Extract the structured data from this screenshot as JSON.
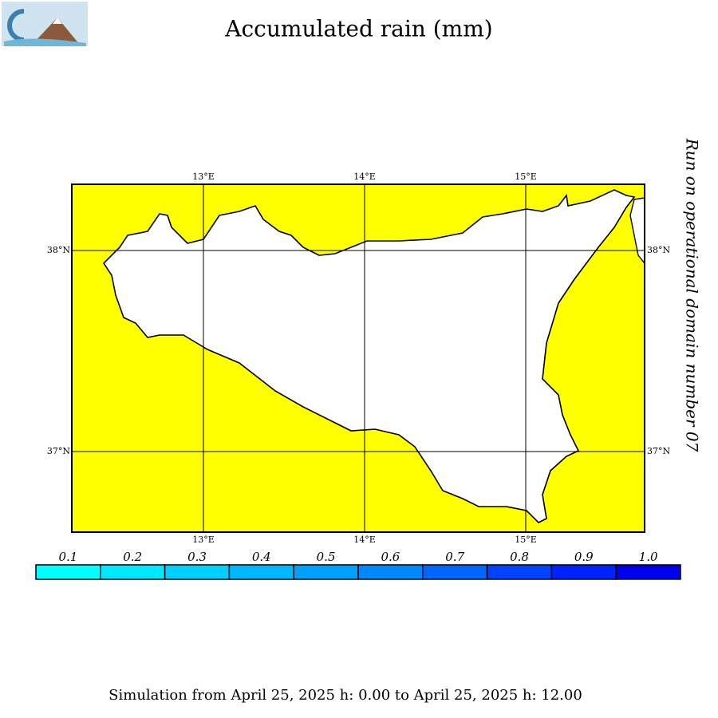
{
  "header": {
    "title": "Accumulated rain (mm)",
    "side_note": "Run on operational domain number 07"
  },
  "map": {
    "lon_labels": [
      "13°E",
      "14°E",
      "15°E"
    ],
    "lat_labels": [
      "38°N",
      "37°N"
    ],
    "sea_color": "#ffff00",
    "land_color": "#ffffff"
  },
  "legend": {
    "labels": [
      "0.1",
      "0.2",
      "0.3",
      "0.4",
      "0.5",
      "0.6",
      "0.7",
      "0.8",
      "0.9",
      "1.0"
    ],
    "colors": [
      "#00ffff",
      "#00e8ff",
      "#00d0ff",
      "#00b8ff",
      "#00a0ff",
      "#0088ff",
      "#0066ff",
      "#0044ff",
      "#0022ff",
      "#0000ee"
    ]
  },
  "footer": {
    "text": "Simulation from April 25, 2025 h: 0.00 to April 25, 2025 h: 12.00"
  }
}
